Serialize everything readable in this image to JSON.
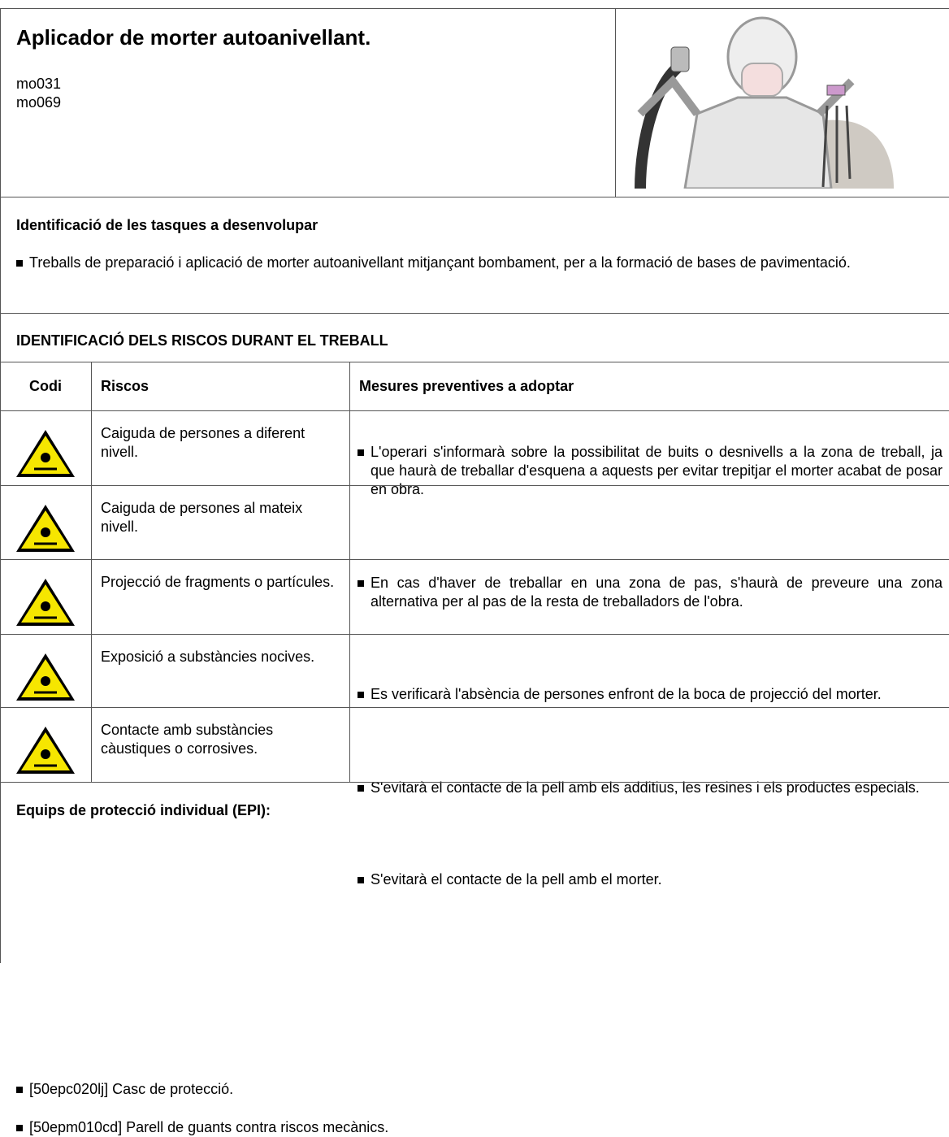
{
  "header": {
    "title": "Aplicador de morter autoanivellant.",
    "codes": [
      "mo031",
      "mo069"
    ]
  },
  "tasks": {
    "heading": "Identificació de les tasques a desenvolupar",
    "items": [
      "Treballs de preparació i aplicació de morter autoanivellant mitjançant bombament, per a la formació de bases de pavimentació."
    ]
  },
  "risks": {
    "heading": "IDENTIFICACIÓ DELS RISCOS DURANT EL TREBALL",
    "columns": [
      "Codi",
      "Riscos",
      "Mesures preventives a adoptar"
    ],
    "rows": [
      {
        "risk": "Caiguda de persones a diferent nivell.",
        "measures": [
          "L'operari s'informarà sobre la possibilitat de buits o desnivells a la zona de treball, ja que haurà de treballar d'esquena a aquests per evitar trepitjar el morter acabat de posar en obra."
        ]
      },
      {
        "risk": "Caiguda de persones al mateix nivell.",
        "measures": [
          "En cas d'haver de treballar en una zona de pas, s'haurà de preveure una zona alternativa per al pas de la resta de treballadors de l'obra."
        ]
      },
      {
        "risk": "Projecció de fragments o partícules.",
        "measures": [
          "Es verificarà l'absència de persones enfront de la boca de projecció del morter."
        ]
      },
      {
        "risk": "Exposició a substàncies nocives.",
        "measures": [
          "S'evitarà el contacte de la pell amb els additius, les resines i els productes especials."
        ]
      },
      {
        "risk": "Contacte amb substàncies càustiques o corrosives.",
        "measures": [
          "S'evitarà el contacte de la pell amb el morter."
        ]
      }
    ]
  },
  "epi": {
    "heading": "Equips de protecció individual (EPI):",
    "items": [
      "[50epc020lj] Casc de protecció.",
      "[50epm010cd] Parell de guants contra riscos mecànics."
    ]
  }
}
